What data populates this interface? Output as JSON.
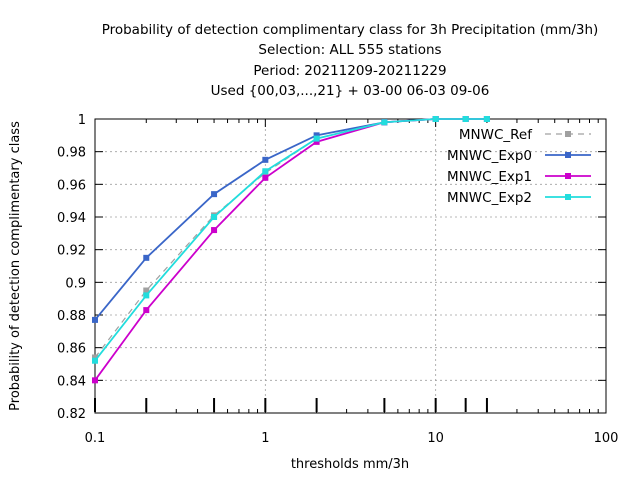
{
  "chart_data": {
    "type": "line",
    "title_lines": [
      "Probability of detection complimentary class  for 3h Precipitation (mm/3h)",
      "Selection: ALL    555 stations",
      "Period: 20211209-20211229",
      "Used {00,03,...,21} + 03-00 06-03 09-06"
    ],
    "xlabel": "thresholds mm/3h",
    "ylabel": "Probability of detection complimentary class",
    "xscale": "log",
    "xlim": [
      0.1,
      100
    ],
    "ylim": [
      0.82,
      1.0
    ],
    "x_ticks": [
      0.1,
      1,
      10,
      100
    ],
    "x_tick_labels": [
      "0.1",
      "1",
      "10",
      "100"
    ],
    "y_ticks": [
      0.82,
      0.84,
      0.86,
      0.88,
      0.9,
      0.92,
      0.94,
      0.96,
      0.98,
      1.0
    ],
    "y_tick_labels": [
      "0.82",
      "0.84",
      "0.86",
      "0.88",
      "0.9",
      "0.92",
      "0.94",
      "0.96",
      "0.98",
      "1"
    ],
    "threshold_marks": [
      0.1,
      0.2,
      0.5,
      1,
      2,
      5,
      10,
      15,
      20
    ],
    "grid": true,
    "legend_position": "top-right",
    "x": [
      0.1,
      0.2,
      0.5,
      1,
      2,
      5,
      10,
      15,
      20
    ],
    "series": [
      {
        "name": "MNWC_Ref",
        "color": "#a0a0a0",
        "dashed": true,
        "values": [
          0.854,
          0.895,
          0.941,
          0.967,
          0.988,
          0.998,
          1.0,
          1.0,
          1.0
        ]
      },
      {
        "name": "MNWC_Exp0",
        "color": "#3a66c8",
        "dashed": false,
        "values": [
          0.877,
          0.915,
          0.954,
          0.975,
          0.99,
          0.998,
          1.0,
          1.0,
          1.0
        ]
      },
      {
        "name": "MNWC_Exp1",
        "color": "#cc00cc",
        "dashed": false,
        "values": [
          0.84,
          0.883,
          0.932,
          0.964,
          0.986,
          0.998,
          1.0,
          1.0,
          1.0
        ]
      },
      {
        "name": "MNWC_Exp2",
        "color": "#22dddd",
        "dashed": false,
        "values": [
          0.852,
          0.892,
          0.94,
          0.968,
          0.988,
          0.998,
          1.0,
          1.0,
          1.0
        ]
      }
    ]
  }
}
